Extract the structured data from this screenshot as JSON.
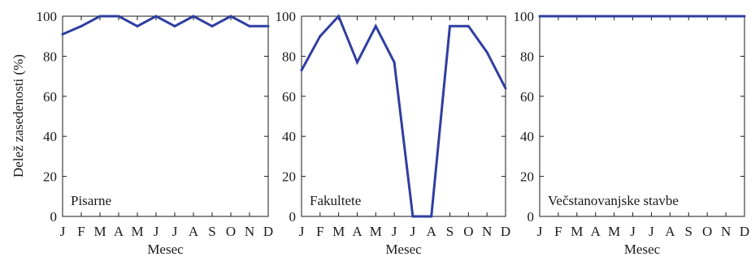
{
  "figure": {
    "ylabel": "Delež zasedenosti (%)"
  },
  "chart_data": [
    {
      "type": "line",
      "title": "Pisarne",
      "xlabel": "Mesec",
      "ylabel": "Delež zasedenosti (%)",
      "categories": [
        "J",
        "F",
        "M",
        "A",
        "M",
        "J",
        "J",
        "A",
        "S",
        "O",
        "N",
        "D"
      ],
      "ylim": [
        0,
        100
      ],
      "yticks": [
        0,
        20,
        40,
        60,
        80,
        100
      ],
      "series": [
        {
          "values": [
            91,
            95,
            100,
            100,
            95,
            100,
            95,
            100,
            95,
            100,
            95,
            95
          ],
          "color": "#2f3ea0"
        }
      ],
      "grid": false
    },
    {
      "type": "line",
      "title": "Fakultete",
      "xlabel": "Mesec",
      "ylabel": "",
      "categories": [
        "J",
        "F",
        "M",
        "A",
        "M",
        "J",
        "J",
        "A",
        "S",
        "O",
        "N",
        "D"
      ],
      "ylim": [
        0,
        100
      ],
      "yticks": [
        0,
        20,
        40,
        60,
        80,
        100
      ],
      "series": [
        {
          "values": [
            73,
            90,
            100,
            77,
            95,
            77,
            0,
            0,
            95,
            95,
            82,
            64
          ],
          "color": "#2f3ea0"
        }
      ],
      "grid": false
    },
    {
      "type": "line",
      "title": "Večstanovanjske stavbe",
      "xlabel": "Mesec",
      "ylabel": "",
      "categories": [
        "J",
        "F",
        "M",
        "A",
        "M",
        "J",
        "J",
        "A",
        "S",
        "O",
        "N",
        "D"
      ],
      "ylim": [
        0,
        100
      ],
      "yticks": [
        0,
        20,
        40,
        60,
        80,
        100
      ],
      "series": [
        {
          "values": [
            100,
            100,
            100,
            100,
            100,
            100,
            100,
            100,
            100,
            100,
            100,
            100
          ],
          "color": "#2f3ea0"
        }
      ],
      "grid": false
    }
  ]
}
